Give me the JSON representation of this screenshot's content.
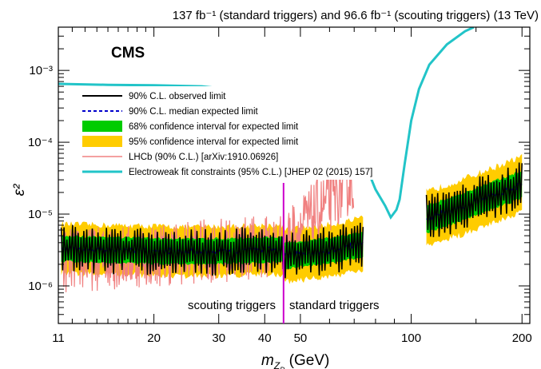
{
  "chart_data": {
    "type": "line",
    "lumi": "137 fb⁻¹ (standard triggers) and 96.6 fb⁻¹ (scouting triggers) (13 TeV)",
    "experiment": "CMS",
    "xlabel_main": "m",
    "xlabel_sub": "Z",
    "xlabel_subsub": "D",
    "xlabel_unit": "(GeV)",
    "ylabel": "ε²",
    "xscale": "log",
    "yscale": "log",
    "xlim": [
      11,
      210
    ],
    "ylim": [
      3e-07,
      0.004
    ],
    "x_ticks": [
      {
        "v": 11,
        "label": "11"
      },
      {
        "v": 20,
        "label": "20"
      },
      {
        "v": 30,
        "label": "30"
      },
      {
        "v": 40,
        "label": "40"
      },
      {
        "v": 50,
        "label": "50"
      },
      {
        "v": 100,
        "label": "100"
      },
      {
        "v": 200,
        "label": "200"
      }
    ],
    "y_ticks": [
      {
        "v": 1e-06,
        "label": "10⁻⁶"
      },
      {
        "v": 1e-05,
        "label": "10⁻⁵"
      },
      {
        "v": 0.0001,
        "label": "10⁻⁴"
      },
      {
        "v": 0.001,
        "label": "10⁻³"
      }
    ],
    "legend": [
      {
        "label": "90% C.L. observed limit",
        "style": "observed"
      },
      {
        "label": "90% C.L. median expected limit",
        "style": "expected"
      },
      {
        "label": "68% confidence interval for expected limit",
        "style": "band68"
      },
      {
        "label": "95% confidence interval for expected limit",
        "style": "band95"
      },
      {
        "label": "LHCb (90% C.L.) [arXiv:1910.06926]",
        "style": "lhcb"
      },
      {
        "label": "Electroweak fit constraints (95% C.L.) [JHEP 02 (2015) 157]",
        "style": "ew"
      }
    ],
    "trigger_boundary_x": 45,
    "region_labels": {
      "left": "scouting triggers",
      "right": "standard triggers"
    },
    "colors": {
      "observed": "#000000",
      "expected": "#0000cc",
      "band68": "#00cc00",
      "band95": "#ffcc00",
      "lhcb": "#f08080",
      "ew": "#22c4c8",
      "boundary": "#cc00cc"
    },
    "segments": [
      {
        "xmin": 11.2,
        "xmax": 44.9,
        "median": [
          [
            11.2,
            3.3e-06
          ],
          [
            25,
            3e-06
          ],
          [
            44.9,
            3.2e-06
          ]
        ],
        "h68": 1.5,
        "h95": 2.2
      },
      {
        "xmin": 45.1,
        "xmax": 74,
        "median": [
          [
            45.1,
            2.6e-06
          ],
          [
            60,
            3.1e-06
          ],
          [
            74,
            3.8e-06
          ]
        ],
        "h68": 1.5,
        "h95": 2.3
      },
      {
        "xmin": 110,
        "xmax": 200,
        "median": [
          [
            110,
            8.5e-06
          ],
          [
            140,
            1.3e-05
          ],
          [
            200,
            2.6e-05
          ]
        ],
        "h68": 1.55,
        "h95": 2.4
      }
    ],
    "lhcb_range": [
      11.3,
      70
    ],
    "electroweak": [
      [
        11,
        0.00065
      ],
      [
        15,
        0.00063
      ],
      [
        20,
        0.00062
      ],
      [
        27,
        0.0006
      ],
      [
        35,
        0.00052
      ],
      [
        45,
        0.00042
      ],
      [
        55,
        0.0003
      ],
      [
        60,
        0.00024
      ],
      [
        65,
        0.00017
      ],
      [
        70,
        0.000105
      ],
      [
        75,
        5e-05
      ],
      [
        80,
        2.2e-05
      ],
      [
        85,
        1.3e-05
      ],
      [
        88,
        9e-06
      ],
      [
        91.2,
        1.15e-05
      ],
      [
        93,
        1.6e-05
      ],
      [
        96,
        5e-05
      ],
      [
        100,
        0.0002
      ],
      [
        105,
        0.00055
      ],
      [
        112,
        0.0012
      ],
      [
        125,
        0.0023
      ],
      [
        140,
        0.0035
      ],
      [
        148,
        0.004
      ]
    ]
  }
}
